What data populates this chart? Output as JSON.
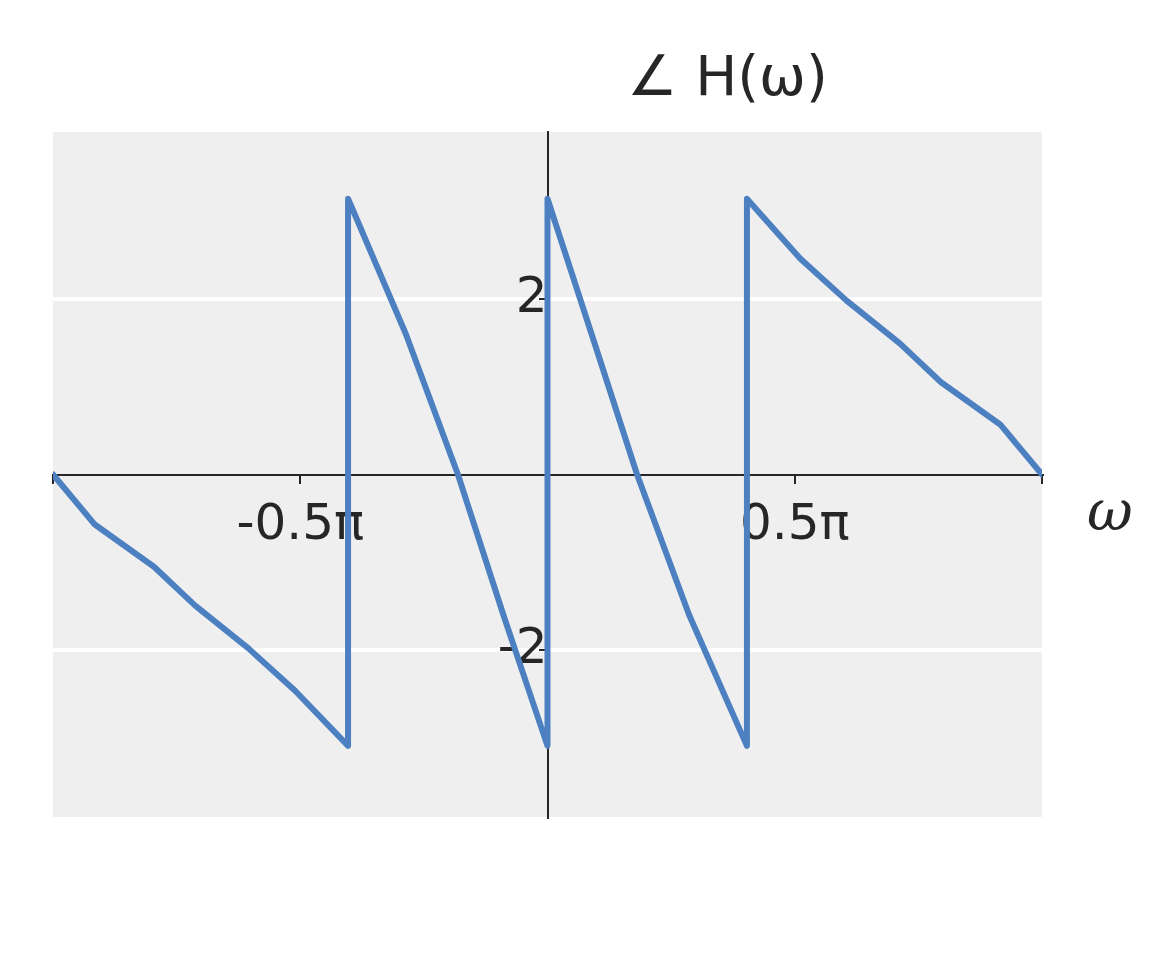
{
  "chart_data": {
    "type": "line",
    "title": "∠ H(ω)",
    "xlabel": "ω",
    "xlim": [
      -3.1416,
      3.1416
    ],
    "xticks": [
      {
        "value": -3.1416,
        "label": null
      },
      {
        "value": -1.5708,
        "label": "-0.5π"
      },
      {
        "value": 1.5708,
        "label": "0.5π"
      },
      {
        "value": 3.1416,
        "label": null
      }
    ],
    "ylim": [
      -3.9,
      3.9
    ],
    "yticks": [
      -2,
      2
    ],
    "grid": "y",
    "marker": "none",
    "line_style": "solid",
    "series": [
      {
        "color": "#4c80c1",
        "x": [
          -3.1416,
          -2.876,
          -2.5,
          -2.24,
          -1.9,
          -1.605,
          -1.267,
          -1.267,
          -0.9,
          -0.569,
          -0.28,
          0,
          0,
          0.28,
          0.569,
          0.9,
          1.267,
          1.267,
          1.605,
          1.9,
          2.24,
          2.5,
          2.876,
          3.1416
        ],
        "values": [
          0,
          -0.57,
          -1.05,
          -1.49,
          -1.98,
          -2.46,
          -3.09,
          3.14,
          1.6,
          0,
          -1.6,
          -3.09,
          3.14,
          1.6,
          0,
          -1.6,
          -3.09,
          3.14,
          2.46,
          1.98,
          1.49,
          1.05,
          0.57,
          0
        ]
      }
    ]
  }
}
